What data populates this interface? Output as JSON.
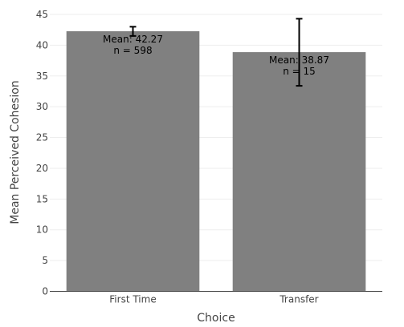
{
  "chart_data": {
    "type": "bar",
    "title": "",
    "xlabel": "Choice",
    "ylabel": "Mean Perceived Cohesion",
    "ylim": [
      0,
      45
    ],
    "yticks": [
      0,
      5,
      10,
      15,
      20,
      25,
      30,
      35,
      40,
      45
    ],
    "grid": true,
    "categories": [
      "First Time",
      "Transfer"
    ],
    "values": [
      42.27,
      38.87
    ],
    "error_low": [
      41.5,
      33.4
    ],
    "error_high": [
      43.0,
      44.3
    ],
    "labels": [
      [
        "Mean: 42.27",
        "n = 598"
      ],
      [
        "Mean: 38.87",
        "n = 15"
      ]
    ],
    "colors": {
      "bar": "#808080",
      "error_bar": "#000000"
    }
  }
}
